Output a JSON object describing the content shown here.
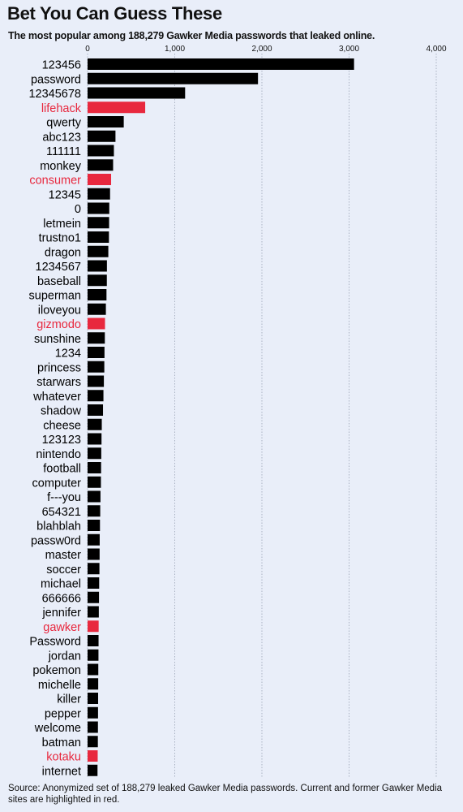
{
  "title": "Bet You Can Guess These",
  "subtitle": "The most popular among 188,279 Gawker Media passwords that leaked online.",
  "source": "Source: Anonymized set of 188,279 leaked Gawker Media passwords. Current and former Gawker Media sites are highlighted in red.",
  "colors": {
    "default": "#000000",
    "highlight": "#e8283e",
    "grid": "#9aa3b5",
    "background": "#e9eef9"
  },
  "chart_data": {
    "type": "bar",
    "orientation": "horizontal",
    "xlim": [
      0,
      4000
    ],
    "xticks": [
      "0",
      "1,000",
      "2,000",
      "3,000",
      "4,000"
    ],
    "grid": true,
    "categories": [
      "123456",
      "password",
      "12345678",
      "lifehack",
      "qwerty",
      "abc123",
      "111111",
      "monkey",
      "consumer",
      "12345",
      "0",
      "letmein",
      "trustno1",
      "dragon",
      "1234567",
      "baseball",
      "superman",
      "iloveyou",
      "gizmodo",
      "sunshine",
      "1234",
      "princess",
      "starwars",
      "whatever",
      "shadow",
      "cheese",
      "123123",
      "nintendo",
      "football",
      "computer",
      "f---you",
      "654321",
      "blahblah",
      "passw0rd",
      "master",
      "soccer",
      "michael",
      "666666",
      "jennifer",
      "gawker",
      "Password",
      "jordan",
      "pokemon",
      "michelle",
      "killer",
      "pepper",
      "welcome",
      "batman",
      "kotaku",
      "internet"
    ],
    "values": [
      3057,
      1955,
      1119,
      661,
      415,
      320,
      302,
      293,
      270,
      258,
      249,
      247,
      245,
      238,
      222,
      221,
      217,
      210,
      200,
      198,
      194,
      192,
      187,
      182,
      177,
      163,
      160,
      157,
      155,
      153,
      148,
      145,
      142,
      139,
      138,
      136,
      133,
      131,
      129,
      127,
      126,
      125,
      123,
      122,
      121,
      120,
      119,
      118,
      116,
      114
    ],
    "highlighted": [
      "lifehack",
      "consumer",
      "gizmodo",
      "gawker",
      "kotaku"
    ]
  }
}
